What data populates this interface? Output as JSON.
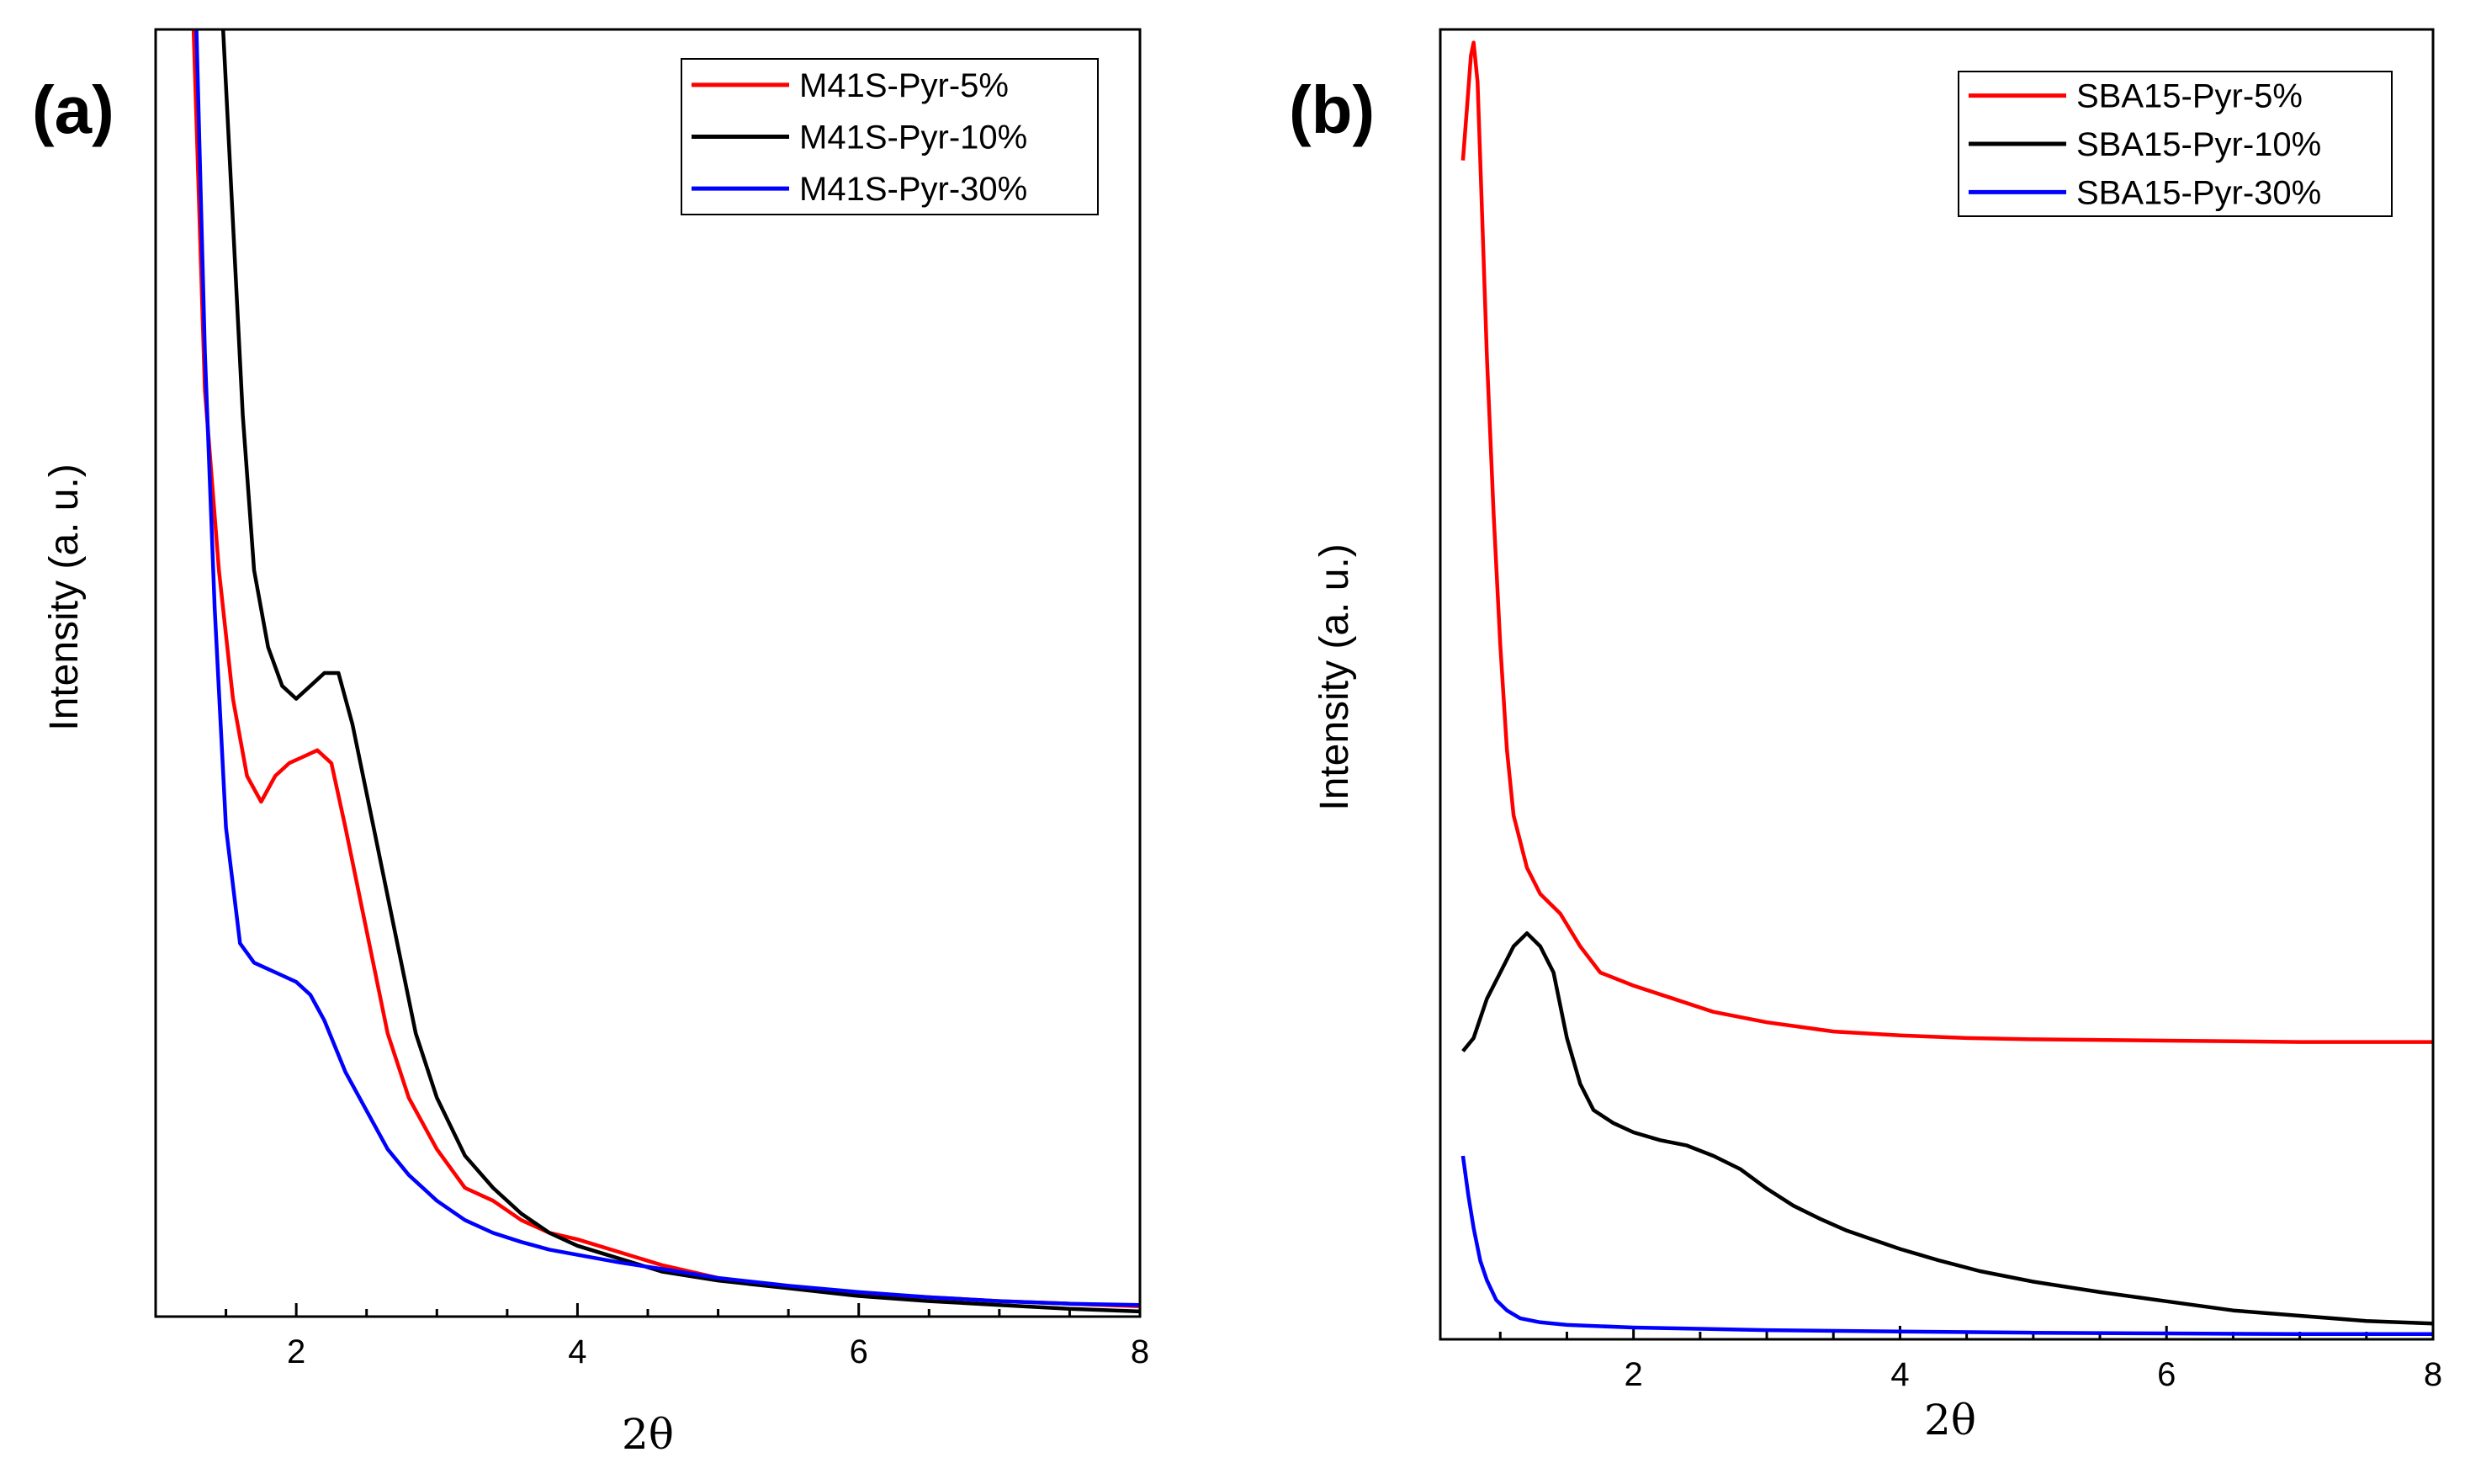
{
  "chart_data": [
    {
      "type": "line",
      "panel_label": "(a)",
      "xlabel": "2θ",
      "ylabel": "Intensity (a. u.)",
      "xlim": [
        1,
        8
      ],
      "ylim": [
        0,
        100
      ],
      "x_ticks": [
        2,
        4,
        6,
        8
      ],
      "y_ticks_shown": false,
      "legend_position": "top-right",
      "series": [
        {
          "name": "M41S-Pyr-5%",
          "color": "#ff0000",
          "points": [
            [
              1.27,
              100
            ],
            [
              1.35,
              72
            ],
            [
              1.45,
              58
            ],
            [
              1.55,
              48
            ],
            [
              1.65,
              42
            ],
            [
              1.75,
              40
            ],
            [
              1.85,
              42
            ],
            [
              1.95,
              43
            ],
            [
              2.05,
              43.5
            ],
            [
              2.15,
              44
            ],
            [
              2.25,
              43
            ],
            [
              2.35,
              38
            ],
            [
              2.5,
              30
            ],
            [
              2.65,
              22
            ],
            [
              2.8,
              17
            ],
            [
              3.0,
              13
            ],
            [
              3.2,
              10
            ],
            [
              3.4,
              9
            ],
            [
              3.6,
              7.5
            ],
            [
              3.8,
              6.5
            ],
            [
              4.0,
              6
            ],
            [
              4.3,
              5
            ],
            [
              4.6,
              4
            ],
            [
              5.0,
              3
            ],
            [
              5.5,
              2.3
            ],
            [
              6.0,
              1.8
            ],
            [
              6.5,
              1.5
            ],
            [
              7.0,
              1.2
            ],
            [
              7.5,
              1.0
            ],
            [
              8.0,
              0.8
            ]
          ]
        },
        {
          "name": "M41S-Pyr-10%",
          "color": "#000000",
          "points": [
            [
              1.48,
              100
            ],
            [
              1.55,
              85
            ],
            [
              1.62,
              70
            ],
            [
              1.7,
              58
            ],
            [
              1.8,
              52
            ],
            [
              1.9,
              49
            ],
            [
              2.0,
              48
            ],
            [
              2.1,
              49
            ],
            [
              2.2,
              50
            ],
            [
              2.3,
              50
            ],
            [
              2.4,
              46
            ],
            [
              2.55,
              38
            ],
            [
              2.7,
              30
            ],
            [
              2.85,
              22
            ],
            [
              3.0,
              17
            ],
            [
              3.2,
              12.5
            ],
            [
              3.4,
              10
            ],
            [
              3.6,
              8
            ],
            [
              3.8,
              6.5
            ],
            [
              4.0,
              5.5
            ],
            [
              4.3,
              4.5
            ],
            [
              4.6,
              3.5
            ],
            [
              5.0,
              2.8
            ],
            [
              5.5,
              2.2
            ],
            [
              6.0,
              1.6
            ],
            [
              6.5,
              1.2
            ],
            [
              7.0,
              0.9
            ],
            [
              7.5,
              0.6
            ],
            [
              8.0,
              0.4
            ]
          ]
        },
        {
          "name": "M41S-Pyr-30%",
          "color": "#0000ff",
          "points": [
            [
              1.29,
              100
            ],
            [
              1.35,
              75
            ],
            [
              1.42,
              55
            ],
            [
              1.5,
              38
            ],
            [
              1.6,
              29
            ],
            [
              1.7,
              27.5
            ],
            [
              1.8,
              27
            ],
            [
              1.9,
              26.5
            ],
            [
              2.0,
              26
            ],
            [
              2.1,
              25
            ],
            [
              2.2,
              23
            ],
            [
              2.35,
              19
            ],
            [
              2.5,
              16
            ],
            [
              2.65,
              13
            ],
            [
              2.8,
              11
            ],
            [
              3.0,
              9
            ],
            [
              3.2,
              7.5
            ],
            [
              3.4,
              6.5
            ],
            [
              3.6,
              5.8
            ],
            [
              3.8,
              5.2
            ],
            [
              4.0,
              4.8
            ],
            [
              4.3,
              4.2
            ],
            [
              4.6,
              3.7
            ],
            [
              5.0,
              3.0
            ],
            [
              5.5,
              2.4
            ],
            [
              6.0,
              1.9
            ],
            [
              6.5,
              1.5
            ],
            [
              7.0,
              1.2
            ],
            [
              7.5,
              1.0
            ],
            [
              8.0,
              0.9
            ]
          ]
        }
      ]
    },
    {
      "type": "line",
      "panel_label": "(b)",
      "xlabel": "2θ",
      "ylabel": "Intensity (a. u.)",
      "xlim": [
        0.55,
        8
      ],
      "ylim": [
        0,
        100
      ],
      "x_ticks": [
        2,
        4,
        6,
        8
      ],
      "y_ticks_shown": false,
      "legend_position": "top-right",
      "series": [
        {
          "name": "SBA15-Pyr-5%",
          "color": "#ff0000",
          "points": [
            [
              0.72,
              90
            ],
            [
              0.75,
              94
            ],
            [
              0.78,
              98
            ],
            [
              0.8,
              99
            ],
            [
              0.83,
              96
            ],
            [
              0.86,
              87
            ],
            [
              0.9,
              75
            ],
            [
              0.95,
              63
            ],
            [
              1.0,
              53
            ],
            [
              1.05,
              45
            ],
            [
              1.1,
              40
            ],
            [
              1.2,
              36
            ],
            [
              1.3,
              34
            ],
            [
              1.45,
              32.5
            ],
            [
              1.6,
              30
            ],
            [
              1.75,
              28
            ],
            [
              2.0,
              27
            ],
            [
              2.3,
              26
            ],
            [
              2.6,
              25
            ],
            [
              3.0,
              24.2
            ],
            [
              3.5,
              23.5
            ],
            [
              4.0,
              23.2
            ],
            [
              4.5,
              23
            ],
            [
              5.0,
              22.9
            ],
            [
              6.0,
              22.8
            ],
            [
              7.0,
              22.7
            ],
            [
              8.0,
              22.7
            ]
          ]
        },
        {
          "name": "SBA15-Pyr-10%",
          "color": "#000000",
          "points": [
            [
              0.72,
              22
            ],
            [
              0.8,
              23
            ],
            [
              0.9,
              26
            ],
            [
              1.0,
              28
            ],
            [
              1.1,
              30
            ],
            [
              1.2,
              31
            ],
            [
              1.3,
              30
            ],
            [
              1.4,
              28
            ],
            [
              1.5,
              23
            ],
            [
              1.6,
              19.5
            ],
            [
              1.7,
              17.5
            ],
            [
              1.85,
              16.5
            ],
            [
              2.0,
              15.8
            ],
            [
              2.2,
              15.2
            ],
            [
              2.4,
              14.8
            ],
            [
              2.6,
              14
            ],
            [
              2.8,
              13
            ],
            [
              3.0,
              11.5
            ],
            [
              3.2,
              10.2
            ],
            [
              3.4,
              9.2
            ],
            [
              3.6,
              8.3
            ],
            [
              3.8,
              7.6
            ],
            [
              4.0,
              6.9
            ],
            [
              4.3,
              6.0
            ],
            [
              4.6,
              5.2
            ],
            [
              5.0,
              4.4
            ],
            [
              5.5,
              3.6
            ],
            [
              6.0,
              2.9
            ],
            [
              6.5,
              2.2
            ],
            [
              7.0,
              1.8
            ],
            [
              7.5,
              1.4
            ],
            [
              8.0,
              1.2
            ]
          ]
        },
        {
          "name": "SBA15-Pyr-30%",
          "color": "#0000ff",
          "points": [
            [
              0.72,
              14
            ],
            [
              0.76,
              11
            ],
            [
              0.8,
              8.5
            ],
            [
              0.85,
              6
            ],
            [
              0.9,
              4.5
            ],
            [
              0.97,
              3
            ],
            [
              1.05,
              2.2
            ],
            [
              1.15,
              1.6
            ],
            [
              1.3,
              1.3
            ],
            [
              1.5,
              1.1
            ],
            [
              2.0,
              0.9
            ],
            [
              3.0,
              0.7
            ],
            [
              4.0,
              0.6
            ],
            [
              5.0,
              0.5
            ],
            [
              6.0,
              0.45
            ],
            [
              7.0,
              0.4
            ],
            [
              8.0,
              0.4
            ]
          ]
        }
      ]
    }
  ]
}
